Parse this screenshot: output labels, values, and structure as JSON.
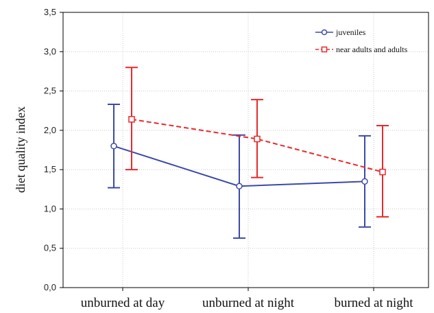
{
  "chart_data": {
    "type": "line",
    "title": "",
    "xlabel": "",
    "ylabel": "diet quality index",
    "categories": [
      "unburned at day",
      "unburned at night",
      "burned at night"
    ],
    "ylim": [
      0,
      3.5
    ],
    "yticks": [
      "0,0",
      "0,5",
      "1,0",
      "1,5",
      "2,0",
      "2,5",
      "3,0",
      "3,5"
    ],
    "grid": true,
    "legend_position": "top-right",
    "series": [
      {
        "name": "juveniles",
        "color": "#3a49a8",
        "line_style": "solid",
        "marker": "circle",
        "values": [
          1.8,
          1.29,
          1.35
        ],
        "error_low": [
          1.27,
          0.63,
          0.77
        ],
        "error_high": [
          2.33,
          1.94,
          1.93
        ]
      },
      {
        "name": "near adults and adults",
        "color": "#e8282b",
        "line_style": "dashed",
        "marker": "square",
        "values": [
          2.14,
          1.89,
          1.47
        ],
        "error_low": [
          1.5,
          1.4,
          0.9
        ],
        "error_high": [
          2.8,
          2.39,
          2.06
        ]
      }
    ]
  }
}
